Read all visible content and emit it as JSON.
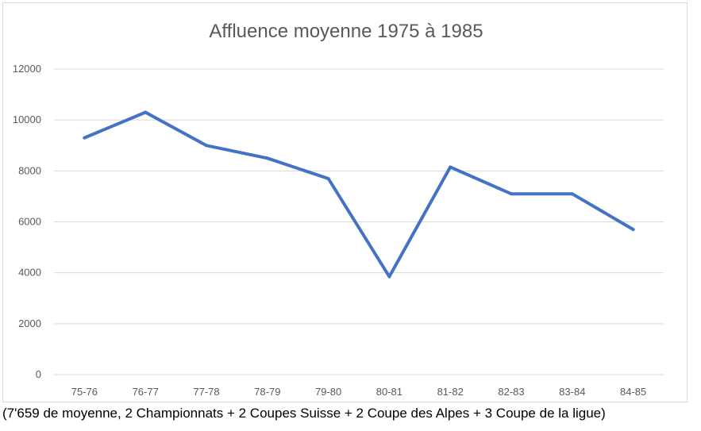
{
  "chart_data": {
    "type": "line",
    "title": "Affluence moyenne 1975 à 1985",
    "xlabel": "",
    "ylabel": "",
    "categories": [
      "75-76",
      "76-77",
      "77-78",
      "78-79",
      "79-80",
      "80-81",
      "81-82",
      "82-83",
      "83-84",
      "84-85"
    ],
    "series": [
      {
        "values": [
          9300,
          10300,
          9000,
          8500,
          7700,
          3850,
          8150,
          7100,
          7100,
          5700
        ],
        "color": "#4472c4"
      }
    ],
    "ylim": [
      0,
      12000
    ],
    "yticks": [
      "0",
      "2000",
      "4000",
      "6000",
      "8000",
      "10000",
      "12000"
    ],
    "grid": true,
    "legend": "none"
  },
  "caption": "(7'659 de moyenne, 2 Championnats + 2 Coupes Suisse + 2 Coupe des Alpes + 3 Coupe de la ligue)"
}
